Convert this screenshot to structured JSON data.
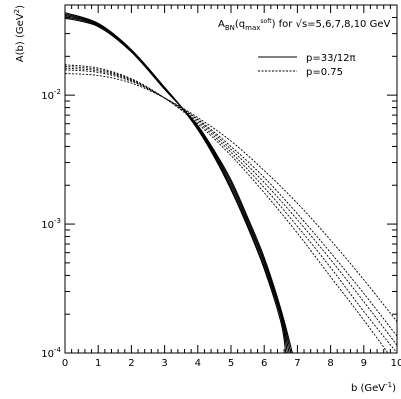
{
  "chart_data": {
    "type": "line",
    "title": {
      "prefix": "A",
      "prefix_sub": "BN",
      "paren_open": "(q",
      "q_sub": "max",
      "q_sup": "soft",
      "rest": ") for √s=5,6,7,8,10 GeV"
    },
    "xlabel": {
      "main": "b (GeV",
      "sup": "-1",
      "close": ")"
    },
    "ylabel": {
      "main": "A(b) (GeV",
      "sup": "2",
      "close": ")"
    },
    "xlim": [
      0,
      10
    ],
    "ylim": [
      0.0001,
      0.05
    ],
    "yscale": "log",
    "grid": false,
    "legend_position": "top-right",
    "x_ticks": [
      "0",
      "1",
      "2",
      "3",
      "4",
      "5",
      "6",
      "7",
      "8",
      "9",
      "10"
    ],
    "y_ticks": [
      {
        "base": "10",
        "exp": "-2"
      },
      {
        "base": "10",
        "exp": "-3"
      },
      {
        "base": "10",
        "exp": "-4"
      }
    ],
    "legend": [
      {
        "label": "p=33/12π",
        "style": "solid"
      },
      {
        "label": "p=0.75",
        "style": "dashed"
      }
    ],
    "series": [
      {
        "group": "solid",
        "x": [
          0,
          1,
          2,
          3,
          3.5,
          4,
          4.5,
          5,
          5.5,
          6,
          6.5,
          6.65
        ],
        "y": [
          0.0435,
          0.036,
          0.0225,
          0.0115,
          0.0081,
          0.0054,
          0.0033,
          0.00185,
          0.00095,
          0.00045,
          0.000175,
          0.0001
        ]
      },
      {
        "group": "solid",
        "x": [
          0,
          1,
          2,
          3,
          3.5,
          4,
          4.5,
          5,
          5.5,
          6,
          6.5,
          6.7
        ],
        "y": [
          0.0425,
          0.0355,
          0.0222,
          0.0114,
          0.0081,
          0.0055,
          0.0034,
          0.0019,
          0.00098,
          0.00047,
          0.00019,
          0.0001
        ]
      },
      {
        "group": "solid",
        "x": [
          0,
          1,
          2,
          3,
          3.5,
          4,
          4.5,
          5,
          5.5,
          6,
          6.5,
          6.75
        ],
        "y": [
          0.0415,
          0.035,
          0.022,
          0.0113,
          0.0081,
          0.0056,
          0.0035,
          0.002,
          0.00103,
          0.0005,
          0.0002,
          0.0001
        ]
      },
      {
        "group": "solid",
        "x": [
          0,
          1,
          2,
          3,
          3.5,
          4,
          4.5,
          5,
          5.5,
          6,
          6.5,
          6.8
        ],
        "y": [
          0.0405,
          0.0345,
          0.0218,
          0.0112,
          0.0081,
          0.0057,
          0.0036,
          0.0021,
          0.00108,
          0.00052,
          0.00021,
          0.0001
        ]
      },
      {
        "group": "solid",
        "x": [
          0,
          1,
          2,
          3,
          3.5,
          4,
          4.5,
          5,
          5.5,
          6,
          6.5,
          6.85
        ],
        "y": [
          0.0395,
          0.034,
          0.0216,
          0.0111,
          0.0081,
          0.0058,
          0.0037,
          0.0022,
          0.00113,
          0.00055,
          0.00022,
          0.0001
        ]
      },
      {
        "group": "dashed",
        "x": [
          0,
          1,
          2,
          3,
          4,
          5,
          6,
          7,
          8,
          9,
          10
        ],
        "y": [
          0.0172,
          0.0162,
          0.0134,
          0.0095,
          0.006,
          0.0034,
          0.00175,
          0.00085,
          0.00039,
          0.00018,
          8e-05
        ]
      },
      {
        "group": "dashed",
        "x": [
          0,
          1,
          2,
          3,
          4,
          5,
          6,
          7,
          8,
          9,
          10
        ],
        "y": [
          0.0167,
          0.0158,
          0.0132,
          0.0095,
          0.0062,
          0.0036,
          0.00192,
          0.00096,
          0.00046,
          0.00021,
          0.0001
        ]
      },
      {
        "group": "dashed",
        "x": [
          0,
          1,
          2,
          3,
          4,
          5,
          6,
          7,
          8,
          9,
          10
        ],
        "y": [
          0.0162,
          0.0154,
          0.013,
          0.0095,
          0.0064,
          0.0038,
          0.0021,
          0.00108,
          0.00053,
          0.00025,
          0.000115
        ]
      },
      {
        "group": "dashed",
        "x": [
          0,
          1,
          2,
          3,
          4,
          5,
          6,
          7,
          8,
          9,
          10
        ],
        "y": [
          0.0157,
          0.015,
          0.0128,
          0.0095,
          0.0065,
          0.004,
          0.0023,
          0.0012,
          0.0006,
          0.00029,
          0.000135
        ]
      },
      {
        "group": "dashed",
        "x": [
          0,
          1,
          2,
          3,
          4,
          5,
          6,
          7,
          8,
          9,
          10
        ],
        "y": [
          0.0147,
          0.0142,
          0.0124,
          0.0095,
          0.0067,
          0.0044,
          0.0026,
          0.00145,
          0.00075,
          0.00037,
          0.000175
        ]
      }
    ]
  }
}
